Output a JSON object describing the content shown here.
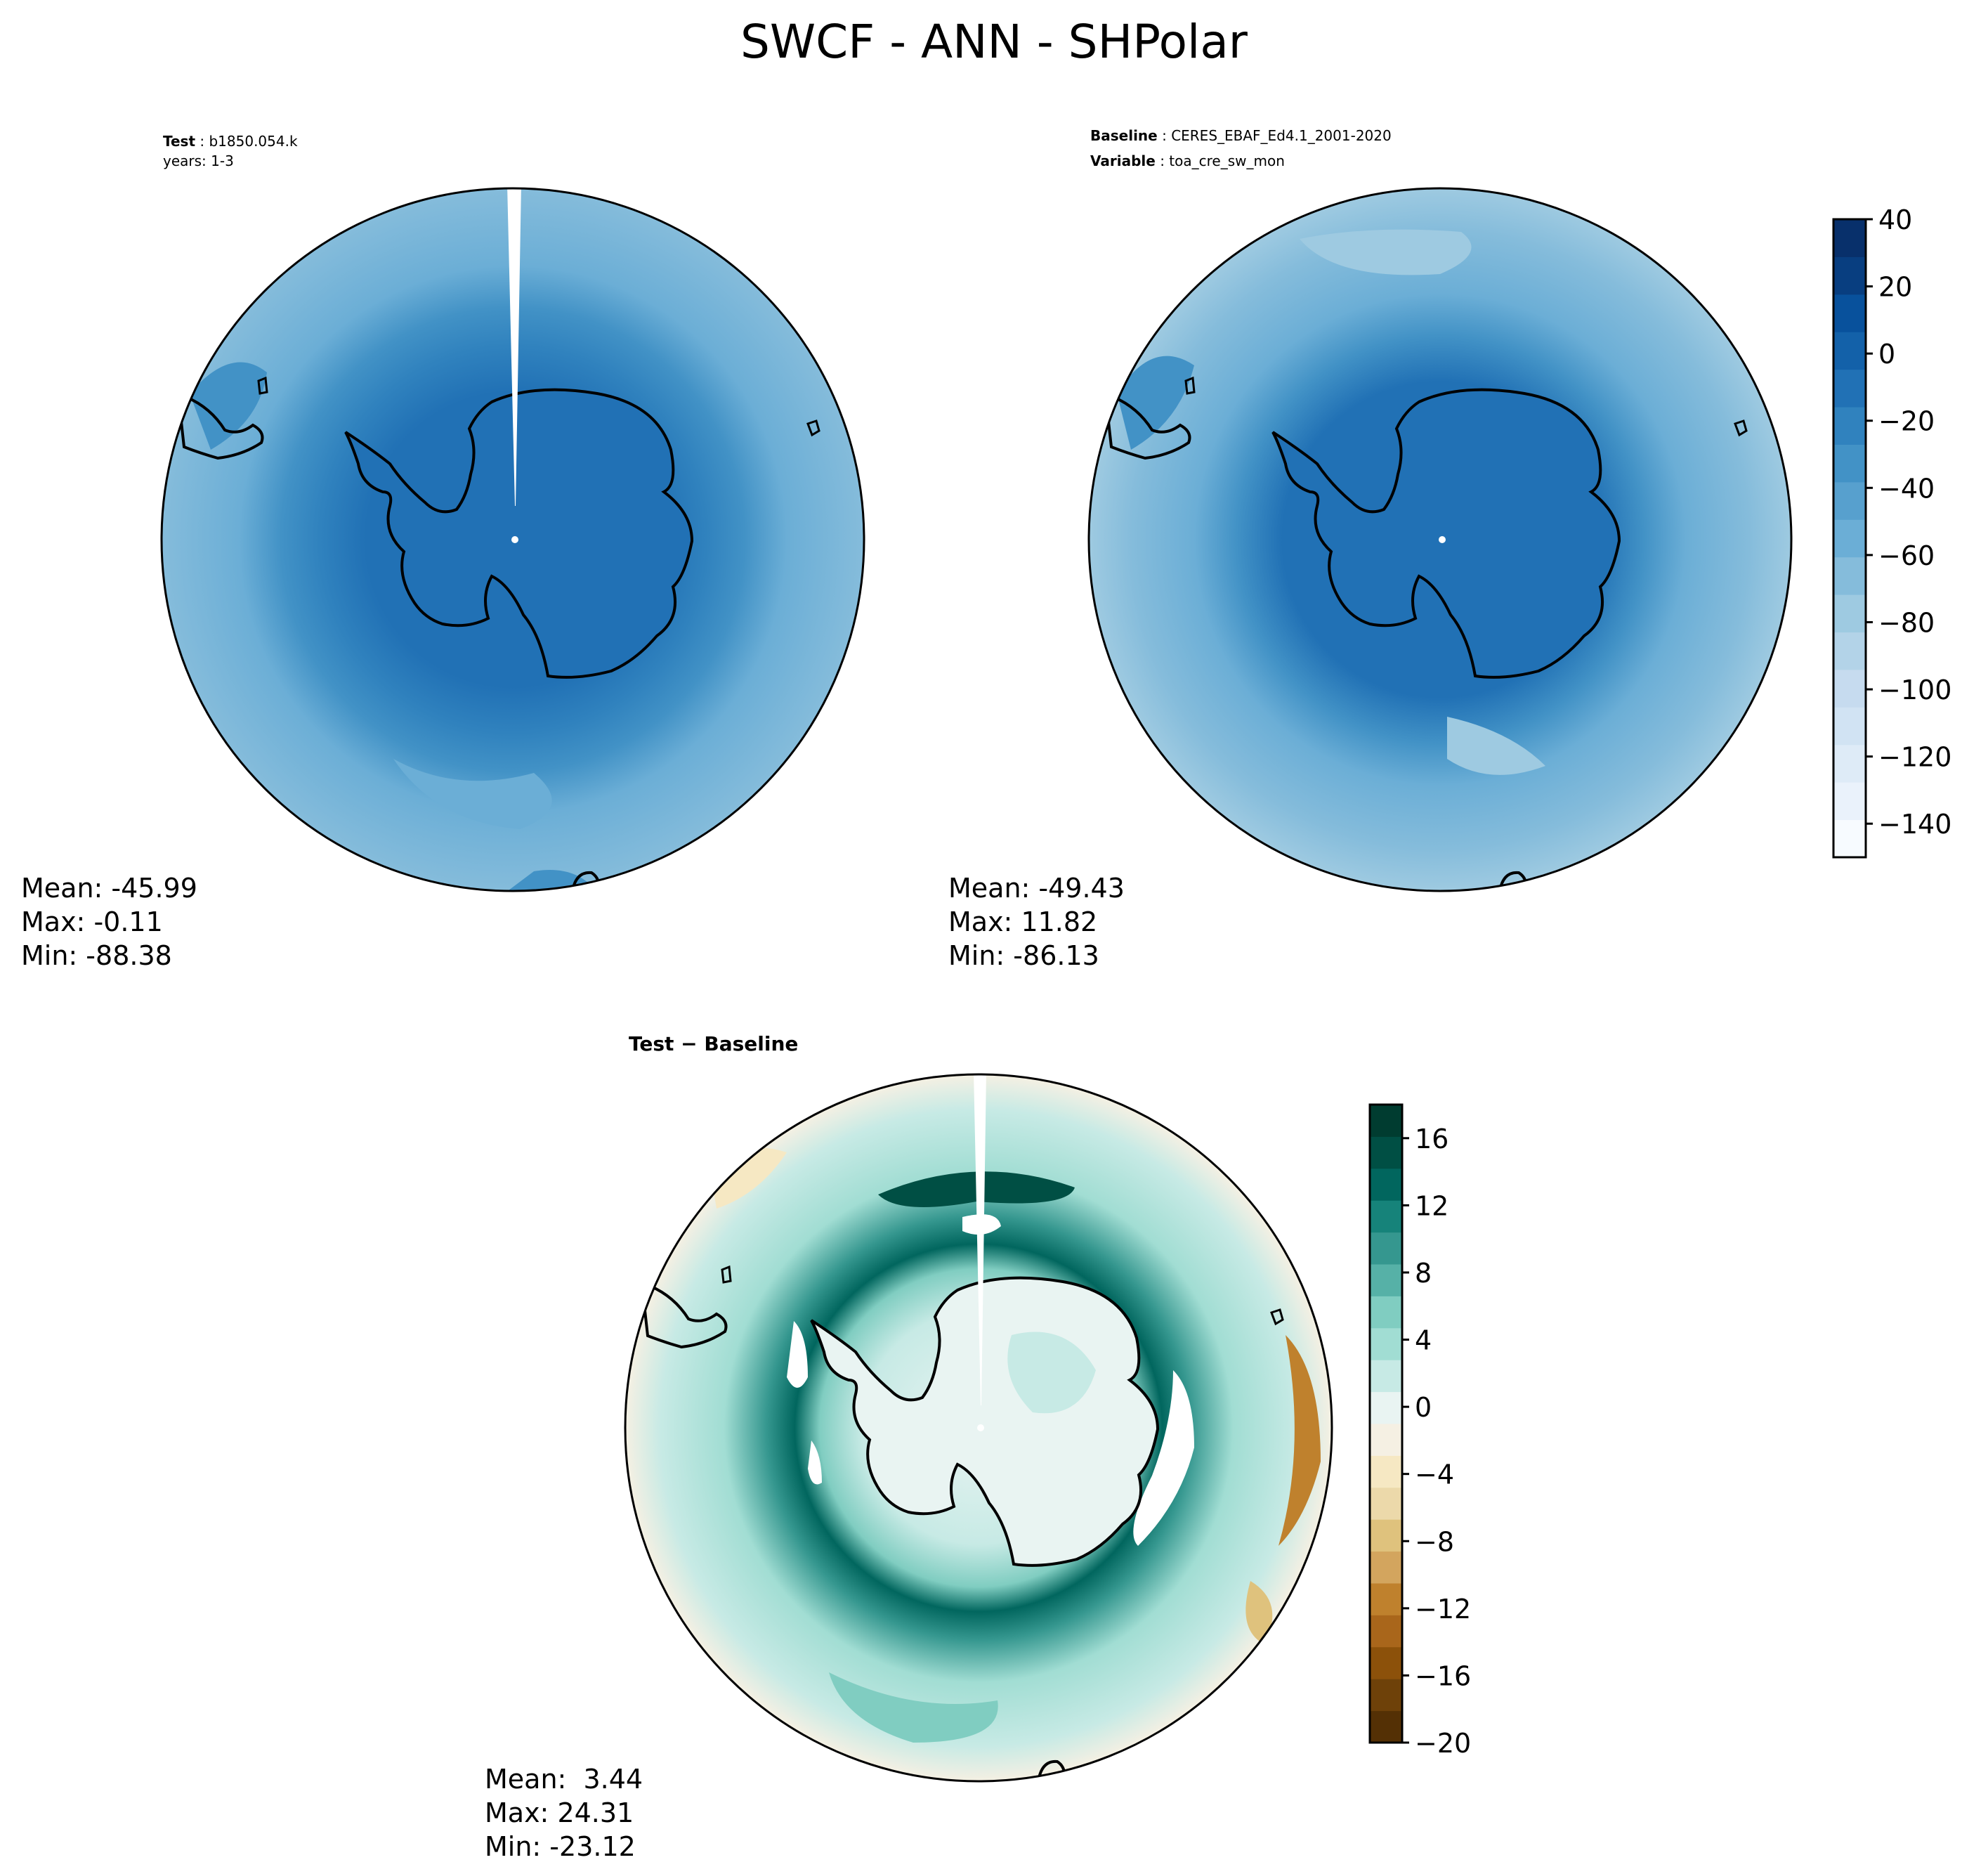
{
  "figure": {
    "title": "SWCF - ANN - SHPolar"
  },
  "colors": {
    "blues": [
      "#f7fbff",
      "#eaf2fb",
      "#deebf7",
      "#d1e3f3",
      "#c6dbef",
      "#b3d3e8",
      "#9ecae1",
      "#85bcdb",
      "#6baed6",
      "#57a0ce",
      "#4292c6",
      "#3082be",
      "#2171b5",
      "#1361a9",
      "#08519c",
      "#083e80",
      "#08306b"
    ],
    "brbg": [
      "#543005",
      "#6e4109",
      "#8c510a",
      "#a9661b",
      "#bf812d",
      "#d3a55e",
      "#dfc27d",
      "#ecd9aa",
      "#f6e8c3",
      "#f5f0e3",
      "#e9f4f2",
      "#c7eae5",
      "#a1ddd3",
      "#80cdc1",
      "#56b1a7",
      "#35978f",
      "#16837a",
      "#01665e",
      "#004f44",
      "#003c30"
    ],
    "coast": "#000000"
  },
  "panels": [
    {
      "id": "test",
      "label_lines": [
        {
          "bold": "Test",
          "sep": " : ",
          "text": "b1850.054.k"
        },
        {
          "bold": "",
          "sep": "",
          "text": "years: 1-3"
        }
      ],
      "stats": {
        "mean": "Mean: -45.99",
        "max": "Max: -0.11",
        "min": "Min: -88.38"
      }
    },
    {
      "id": "baseline",
      "label_lines": [
        {
          "bold": "Baseline",
          "sep": " : ",
          "text": "CERES_EBAF_Ed4.1_2001-2020"
        },
        {
          "bold": "Variable",
          "sep": " : ",
          "text": "toa_cre_sw_mon"
        }
      ],
      "stats": {
        "mean": "Mean: -49.43",
        "max": "Max: 11.82",
        "min": "Min: -86.13"
      }
    },
    {
      "id": "diff",
      "label_lines": [
        {
          "bold": "Test − Baseline",
          "sep": "",
          "text": ""
        }
      ],
      "stats": {
        "mean": "Mean:  3.44",
        "max": "Max: 24.31",
        "min": "Min: -23.12"
      }
    }
  ],
  "colorbars": [
    {
      "id": "main",
      "range": [
        -150,
        40
      ],
      "ticks": [
        "40",
        "20",
        "0",
        "−20",
        "−40",
        "−60",
        "−80",
        "−100",
        "−120",
        "−140"
      ],
      "tick_values": [
        40,
        20,
        0,
        -20,
        -40,
        -60,
        -80,
        -100,
        -120,
        -140
      ]
    },
    {
      "id": "diff",
      "range": [
        -20,
        18
      ],
      "ticks": [
        "16",
        "12",
        "8",
        "4",
        "0",
        "−4",
        "−8",
        "−12",
        "−16",
        "−20"
      ],
      "tick_values": [
        16,
        12,
        8,
        4,
        0,
        -4,
        -8,
        -12,
        -16,
        -20
      ]
    }
  ]
}
